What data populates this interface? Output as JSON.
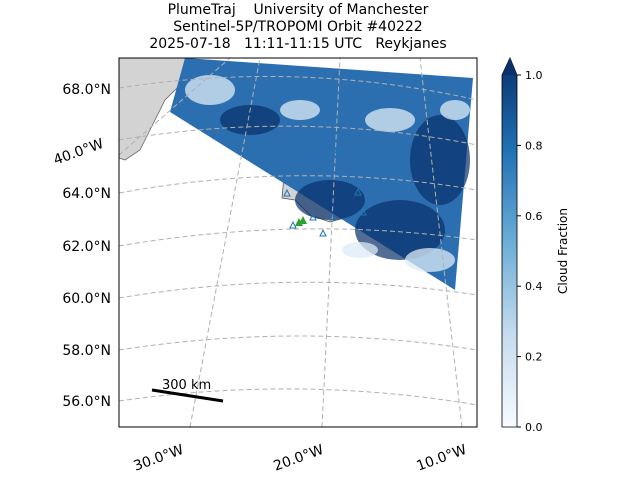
{
  "title": [
    "PlumeTraj    University of Manchester",
    "Sentinel-5P/TROPOMI Orbit #40222",
    "2025-07-18   11:11-11:15 UTC   Reykjanes"
  ],
  "map": {
    "lat_labels": [
      "68.0°N",
      "64.0°N",
      "62.0°N",
      "60.0°N",
      "58.0°N",
      "56.0°N"
    ],
    "lon_labels": [
      "40.0°W",
      "30.0°W",
      "20.0°W",
      "10.0°W"
    ],
    "scale_bar": "300 km"
  },
  "colorbar": {
    "label": "Cloud Fraction",
    "lim": [
      0,
      1
    ],
    "ticks": [
      {
        "value": 0,
        "label": "0.0"
      },
      {
        "value": 0.2,
        "label": "0.2"
      },
      {
        "value": 0.4,
        "label": "0.4"
      },
      {
        "value": 0.6,
        "label": "0.6"
      },
      {
        "value": 0.8,
        "label": "0.8"
      },
      {
        "value": 1,
        "label": "1.0"
      }
    ]
  }
}
